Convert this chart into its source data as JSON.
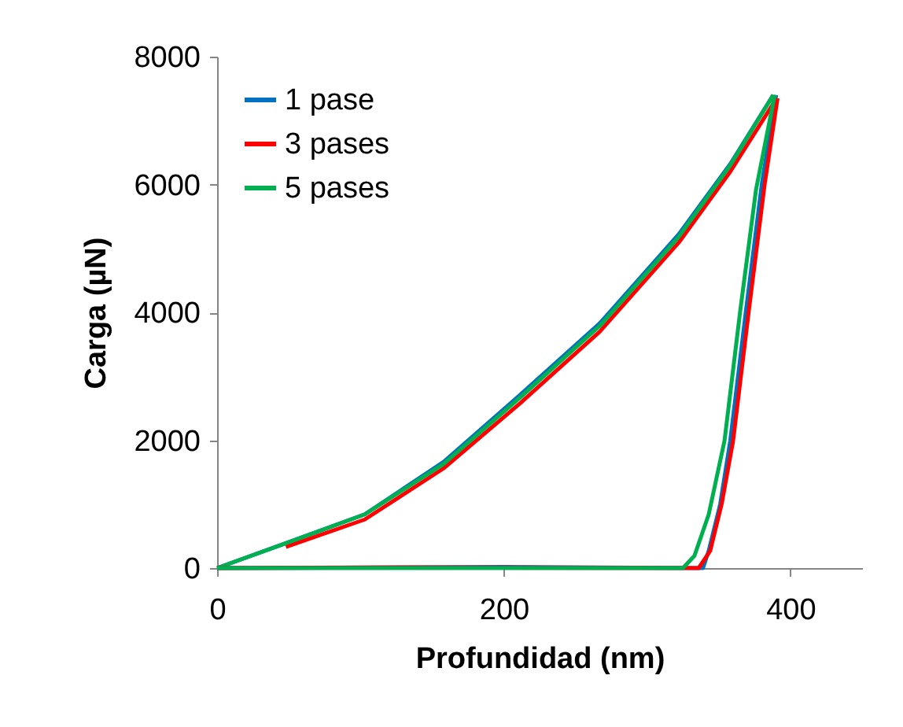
{
  "chart_data": {
    "type": "line",
    "xlabel": "Profundidad (nm)",
    "ylabel": "Carga (µN)",
    "xlim": [
      0,
      450
    ],
    "xticks": [
      0,
      200,
      400
    ],
    "ylim": [
      0,
      8000
    ],
    "yticks": [
      0,
      2000,
      4000,
      6000,
      8000
    ],
    "grid": false,
    "legend": "top left",
    "line_style": "solid",
    "marker": "none",
    "series": [
      {
        "name": "1 pase",
        "color": "#0070c0",
        "x": [
          0,
          48,
          103,
          158,
          212,
          267,
          322,
          358,
          388
        ],
        "values": [
          0,
          390,
          840,
          1660,
          2720,
          3830,
          5220,
          6320,
          7400
        ]
      },
      {
        "name": "3 pases",
        "color": "#ff0000",
        "x": [
          48,
          103,
          158,
          212,
          267,
          322,
          358,
          389
        ],
        "values": [
          330,
          760,
          1560,
          2590,
          3700,
          5090,
          6200,
          7300
        ]
      },
      {
        "name": "5 pases",
        "color": "#00b050",
        "x": [
          0,
          48,
          103,
          158,
          212,
          267,
          322,
          358,
          388
        ],
        "values": [
          0,
          390,
          840,
          1630,
          2680,
          3790,
          5180,
          6300,
          7400
        ]
      },
      {
        "color": "#0070c0",
        "x": [
          390,
          380,
          369,
          358,
          351,
          343,
          339,
          200,
          0
        ],
        "values": [
          7400,
          6000,
          4030,
          1990,
          1000,
          270,
          0,
          20,
          0
        ]
      },
      {
        "color": "#ff0000",
        "x": [
          391,
          382,
          371,
          360,
          352,
          344,
          336,
          130,
          0
        ],
        "values": [
          7350,
          6000,
          4030,
          1990,
          1000,
          270,
          0,
          10,
          0
        ]
      },
      {
        "color": "#00b050",
        "x": [
          389,
          376,
          365,
          354,
          343,
          333,
          325,
          0
        ],
        "values": [
          7400,
          5920,
          4030,
          1990,
          840,
          190,
          0,
          0
        ]
      }
    ]
  }
}
